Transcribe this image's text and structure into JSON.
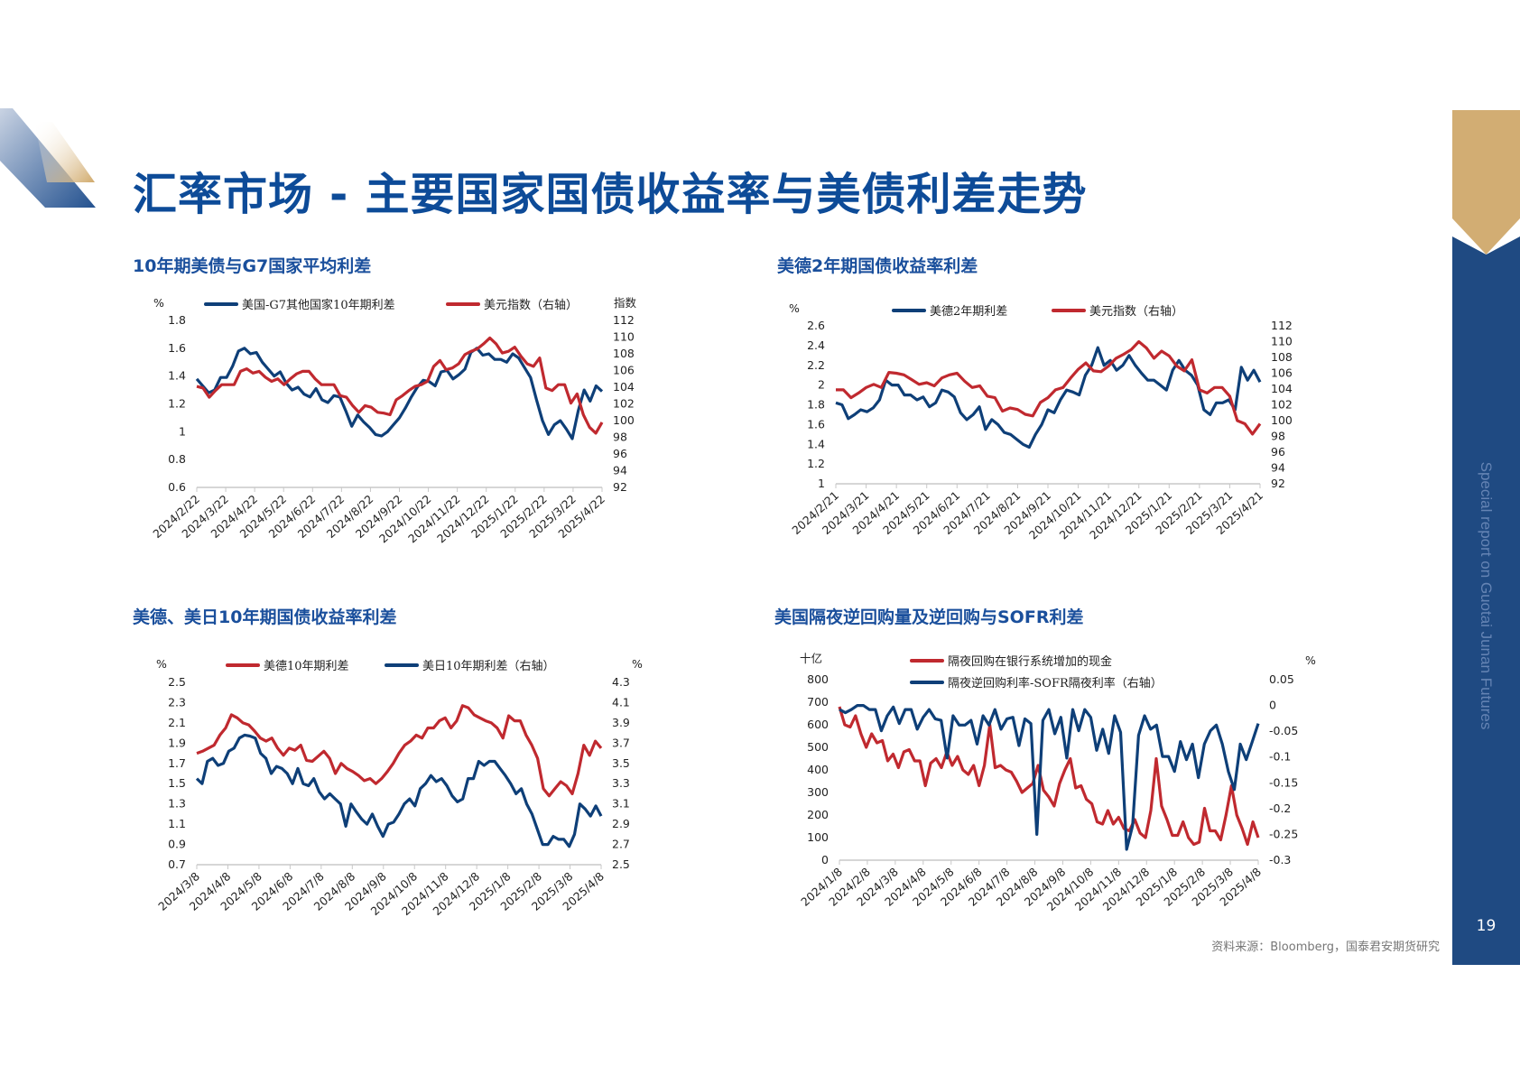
{
  "header": {
    "title": "汇率市场 - 主要国家国债收益率与美债利差走势"
  },
  "sidebar": {
    "text": "Special report on Guotai Junan Futures",
    "page_number": "19"
  },
  "footer": {
    "source": "资料来源：Bloomberg，国泰君安期货研究"
  },
  "colors": {
    "blue": "#0e3f78",
    "red": "#c0292f",
    "title": "#0d4b98",
    "gold": "#d2ad73",
    "sidebar": "#1f4a82"
  },
  "chart_data": [
    {
      "type": "line",
      "title": "10年期美债与G7国家平均利差",
      "left_unit": "%",
      "right_unit": "指数",
      "ylim": [
        0.6,
        1.8
      ],
      "yticks": [
        "0.6",
        "0.8",
        "1",
        "1.2",
        "1.4",
        "1.6",
        "1.8"
      ],
      "y2lim": [
        92,
        112
      ],
      "y2ticks": [
        "92",
        "94",
        "96",
        "98",
        "100",
        "102",
        "104",
        "106",
        "108",
        "110",
        "112"
      ],
      "xticks": [
        "2024/2/22",
        "2024/3/22",
        "2024/4/22",
        "2024/5/22",
        "2024/6/22",
        "2024/7/22",
        "2024/8/22",
        "2024/9/22",
        "2024/10/22",
        "2024/11/22",
        "2024/12/22",
        "2025/1/22",
        "2025/2/22",
        "2025/3/22",
        "2025/4/22"
      ],
      "series": [
        {
          "name": "美国-G7其他国家10年期利差",
          "axis": "left",
          "color": "#0e3f78",
          "values": [
            1.38,
            1.33,
            1.28,
            1.3,
            1.39,
            1.39,
            1.47,
            1.58,
            1.6,
            1.56,
            1.57,
            1.5,
            1.45,
            1.4,
            1.43,
            1.35,
            1.3,
            1.32,
            1.27,
            1.25,
            1.31,
            1.23,
            1.21,
            1.26,
            1.25,
            1.15,
            1.04,
            1.12,
            1.07,
            1.03,
            0.98,
            0.97,
            1.0,
            1.05,
            1.1,
            1.17,
            1.25,
            1.32,
            1.37,
            1.36,
            1.33,
            1.43,
            1.44,
            1.38,
            1.41,
            1.45,
            1.57,
            1.6,
            1.55,
            1.56,
            1.52,
            1.52,
            1.5,
            1.56,
            1.53,
            1.46,
            1.39,
            1.23,
            1.08,
            0.98,
            1.05,
            1.08,
            1.02,
            0.95,
            1.15,
            1.3,
            1.22,
            1.33,
            1.29
          ]
        },
        {
          "name": "美元指数（右轴）",
          "axis": "right",
          "color": "#c0292f",
          "values": [
            104.1,
            103.9,
            102.8,
            103.6,
            104.3,
            104.3,
            104.3,
            105.9,
            106.2,
            105.7,
            105.9,
            105.2,
            104.7,
            105,
            104.3,
            105,
            105.6,
            105.9,
            105.9,
            105,
            104.3,
            104.3,
            104.3,
            103,
            102.8,
            101.8,
            101,
            101.8,
            101.6,
            101,
            100.9,
            100.7,
            102.5,
            103,
            103.6,
            104.1,
            104.3,
            104.7,
            106.5,
            107.2,
            106.1,
            106.3,
            106.8,
            107.9,
            108.3,
            108.6,
            109.2,
            109.9,
            109.2,
            108.1,
            108.3,
            108.8,
            107.7,
            106.8,
            106.5,
            107.5,
            103.9,
            103.6,
            104.3,
            104.3,
            102.1,
            103.2,
            100.7,
            99.2,
            98.5,
            99.8
          ]
        }
      ]
    },
    {
      "type": "line",
      "title": "美德2年期国债收益率利差",
      "left_unit": "%",
      "right_unit": "",
      "ylim": [
        1,
        2.6
      ],
      "yticks": [
        "1",
        "1.2",
        "1.4",
        "1.6",
        "1.8",
        "2",
        "2.2",
        "2.4",
        "2.6"
      ],
      "y2lim": [
        92,
        112
      ],
      "y2ticks": [
        "92",
        "94",
        "96",
        "98",
        "100",
        "102",
        "104",
        "106",
        "108",
        "110",
        "112"
      ],
      "xticks": [
        "2024/2/21",
        "2024/3/21",
        "2024/4/21",
        "2024/5/21",
        "2024/6/21",
        "2024/7/21",
        "2024/8/21",
        "2024/9/21",
        "2024/10/21",
        "2024/11/21",
        "2024/12/21",
        "2025/1/21",
        "2025/2/21",
        "2025/3/21",
        "2025/4/21"
      ],
      "series": [
        {
          "name": "美德2年期利差",
          "axis": "left",
          "color": "#0e3f78",
          "values": [
            1.82,
            1.8,
            1.66,
            1.7,
            1.75,
            1.73,
            1.77,
            1.85,
            2.05,
            2.0,
            2.0,
            1.9,
            1.9,
            1.85,
            1.88,
            1.78,
            1.82,
            1.95,
            1.93,
            1.88,
            1.72,
            1.65,
            1.7,
            1.78,
            1.55,
            1.65,
            1.6,
            1.52,
            1.5,
            1.45,
            1.4,
            1.37,
            1.5,
            1.6,
            1.75,
            1.72,
            1.85,
            1.95,
            1.93,
            1.9,
            2.1,
            2.2,
            2.38,
            2.2,
            2.25,
            2.15,
            2.2,
            2.3,
            2.2,
            2.12,
            2.05,
            2.05,
            2.0,
            1.95,
            2.15,
            2.25,
            2.15,
            2.1,
            2.0,
            1.75,
            1.7,
            1.82,
            1.82,
            1.85,
            1.75,
            2.18,
            2.05,
            2.15,
            2.03
          ]
        },
        {
          "name": "美元指数（右轴）",
          "axis": "right",
          "color": "#c0292f",
          "values": [
            103.9,
            103.9,
            102.9,
            103.5,
            104.2,
            104.6,
            104.2,
            106.1,
            106,
            105.8,
            105.2,
            104.6,
            104.8,
            104.4,
            105.4,
            105.8,
            106,
            105,
            104.2,
            104.4,
            103.1,
            102.9,
            101.2,
            101.6,
            101.4,
            100.8,
            100.6,
            102.3,
            102.9,
            103.9,
            104.2,
            105.4,
            106.5,
            107.3,
            106.3,
            106.2,
            106.9,
            107.9,
            108.4,
            109,
            110,
            109.2,
            107.9,
            108.8,
            108.2,
            106.9,
            106.3,
            107.7,
            103.9,
            103.5,
            104.2,
            104.2,
            103.1,
            100,
            99.6,
            98.3,
            99.6
          ]
        }
      ]
    },
    {
      "type": "line",
      "title": "美德、美日10年期国债收益率利差",
      "left_unit": "%",
      "right_unit": "%",
      "ylim": [
        0.7,
        2.5
      ],
      "yticks": [
        "0.7",
        "0.9",
        "1.1",
        "1.3",
        "1.5",
        "1.7",
        "1.9",
        "2.1",
        "2.3",
        "2.5"
      ],
      "y2lim": [
        2.5,
        4.3
      ],
      "y2ticks": [
        "2.5",
        "2.7",
        "2.9",
        "3.1",
        "3.3",
        "3.5",
        "3.7",
        "3.9",
        "4.1",
        "4.3"
      ],
      "xticks": [
        "2024/3/8",
        "2024/4/8",
        "2024/5/8",
        "2024/6/8",
        "2024/7/8",
        "2024/8/8",
        "2024/9/8",
        "2024/10/8",
        "2024/11/8",
        "2024/12/8",
        "2025/1/8",
        "2025/2/8",
        "2025/3/8",
        "2025/4/8"
      ],
      "series": [
        {
          "name": "美德10年期利差",
          "axis": "left",
          "color": "#c0292f",
          "values": [
            1.8,
            1.82,
            1.85,
            1.88,
            1.98,
            2.05,
            2.18,
            2.15,
            2.1,
            2.08,
            2.02,
            1.95,
            1.92,
            1.95,
            1.85,
            1.78,
            1.85,
            1.83,
            1.88,
            1.73,
            1.72,
            1.77,
            1.82,
            1.75,
            1.6,
            1.7,
            1.65,
            1.62,
            1.58,
            1.53,
            1.55,
            1.5,
            1.55,
            1.62,
            1.7,
            1.8,
            1.88,
            1.92,
            1.98,
            1.95,
            2.05,
            2.05,
            2.12,
            2.15,
            2.05,
            2.12,
            2.27,
            2.25,
            2.18,
            2.15,
            2.12,
            2.1,
            2.05,
            1.95,
            2.17,
            2.12,
            2.12,
            1.98,
            1.88,
            1.75,
            1.45,
            1.38,
            1.45,
            1.52,
            1.48,
            1.4,
            1.6,
            1.88,
            1.78,
            1.92,
            1.85
          ]
        },
        {
          "name": "美日10年期利差（右轴）",
          "axis": "right",
          "color": "#0e3f78",
          "values": [
            3.35,
            3.3,
            3.52,
            3.55,
            3.48,
            3.5,
            3.62,
            3.65,
            3.75,
            3.78,
            3.77,
            3.75,
            3.6,
            3.55,
            3.4,
            3.47,
            3.45,
            3.4,
            3.3,
            3.45,
            3.3,
            3.28,
            3.35,
            3.22,
            3.15,
            3.2,
            3.15,
            3.1,
            2.88,
            3.1,
            3.02,
            2.95,
            2.9,
            3.0,
            2.88,
            2.78,
            2.9,
            2.92,
            3.0,
            3.1,
            3.15,
            3.08,
            3.25,
            3.3,
            3.38,
            3.32,
            3.35,
            3.28,
            3.18,
            3.12,
            3.15,
            3.35,
            3.35,
            3.52,
            3.48,
            3.52,
            3.52,
            3.45,
            3.38,
            3.3,
            3.2,
            3.25,
            3.1,
            3.0,
            2.85,
            2.7,
            2.7,
            2.78,
            2.75,
            2.75,
            2.68,
            2.8,
            3.1,
            3.05,
            2.98,
            3.08,
            2.98
          ]
        }
      ]
    },
    {
      "type": "line",
      "title": "美国隔夜逆回购量及逆回购与SOFR利差",
      "left_unit": "十亿",
      "right_unit": "%",
      "ylim": [
        0,
        800
      ],
      "yticks": [
        "0",
        "100",
        "200",
        "300",
        "400",
        "500",
        "600",
        "700",
        "800"
      ],
      "y2lim": [
        -0.3,
        0.05
      ],
      "y2ticks": [
        "-0.3",
        "-0.25",
        "-0.2",
        "-0.15",
        "-0.1",
        "-0.05",
        "0",
        "0.05"
      ],
      "xticks": [
        "2024/1/8",
        "2024/2/8",
        "2024/3/8",
        "2024/4/8",
        "2024/5/8",
        "2024/6/8",
        "2024/7/8",
        "2024/8/8",
        "2024/9/8",
        "2024/10/8",
        "2024/11/8",
        "2024/12/8",
        "2025/1/8",
        "2025/2/8",
        "2025/3/8",
        "2025/4/8"
      ],
      "series": [
        {
          "name": "隔夜回购在银行系统增加的现金",
          "axis": "left",
          "color": "#c0292f",
          "values": [
            680,
            600,
            590,
            640,
            560,
            500,
            560,
            520,
            530,
            440,
            470,
            410,
            480,
            490,
            440,
            440,
            330,
            430,
            450,
            410,
            480,
            420,
            460,
            400,
            380,
            420,
            330,
            420,
            600,
            410,
            420,
            400,
            390,
            350,
            300,
            320,
            340,
            420,
            310,
            280,
            240,
            340,
            400,
            450,
            320,
            330,
            270,
            250,
            170,
            160,
            220,
            160,
            190,
            140,
            130,
            180,
            120,
            100,
            220,
            450,
            240,
            180,
            110,
            110,
            170,
            100,
            70,
            80,
            230,
            130,
            130,
            90,
            200,
            330,
            200,
            140,
            70,
            170,
            100
          ]
        },
        {
          "name": "隔夜逆回购利率-SOFR隔夜利率（右轴）",
          "axis": "right",
          "color": "#0e3f78",
          "values": [
            -0.008,
            -0.014,
            -0.008,
            0.0,
            0.0,
            -0.008,
            -0.008,
            -0.049,
            -0.02,
            -0.003,
            -0.035,
            -0.008,
            -0.008,
            -0.046,
            -0.023,
            -0.008,
            -0.026,
            -0.029,
            -0.102,
            -0.02,
            -0.038,
            -0.038,
            -0.029,
            -0.075,
            -0.02,
            -0.038,
            -0.008,
            -0.046,
            -0.026,
            -0.023,
            -0.078,
            -0.026,
            -0.035,
            -0.25,
            -0.029,
            -0.008,
            -0.055,
            -0.023,
            -0.102,
            -0.008,
            -0.049,
            -0.008,
            -0.023,
            -0.087,
            -0.046,
            -0.093,
            -0.02,
            -0.052,
            -0.279,
            -0.233,
            -0.058,
            -0.02,
            -0.046,
            -0.038,
            -0.099,
            -0.099,
            -0.128,
            -0.07,
            -0.105,
            -0.075,
            -0.14,
            -0.075,
            -0.049,
            -0.038,
            -0.075,
            -0.128,
            -0.163,
            -0.075,
            -0.105,
            -0.07,
            -0.035
          ]
        }
      ]
    }
  ]
}
